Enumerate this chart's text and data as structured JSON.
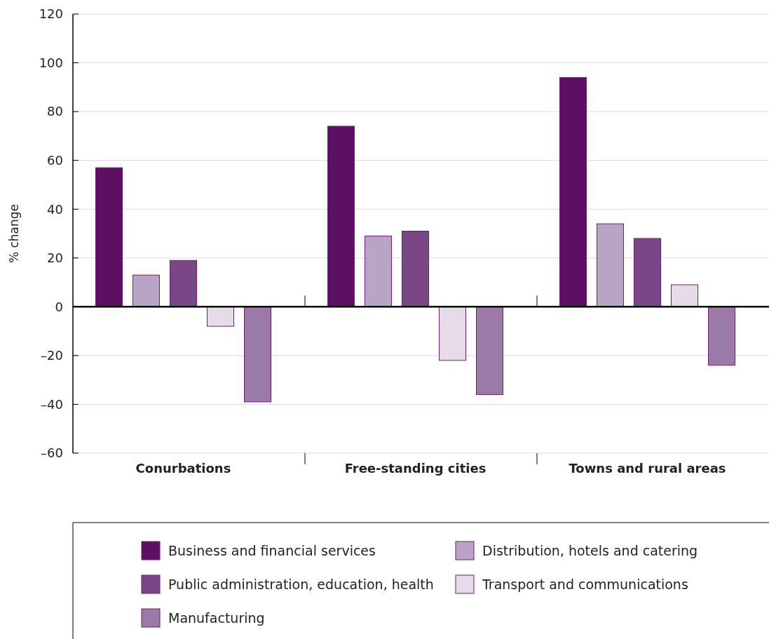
{
  "chart_data": {
    "type": "bar",
    "ylabel": "% change",
    "categories": [
      "Conurbations",
      "Free-standing cities",
      "Towns and rural areas"
    ],
    "series": [
      {
        "name": "Business and financial services",
        "color": "#5c0f63",
        "values": [
          57,
          74,
          94
        ]
      },
      {
        "name": "Distribution, hotels and catering",
        "color": "#b9a3c6",
        "values": [
          13,
          29,
          34
        ]
      },
      {
        "name": "Public administration, education, health",
        "color": "#7a4685",
        "values": [
          19,
          31,
          28
        ]
      },
      {
        "name": "Transport and communications",
        "color": "#e6dbe8",
        "values": [
          -8,
          -22,
          9
        ]
      },
      {
        "name": "Manufacturing",
        "color": "#9b7aa8",
        "values": [
          -39,
          -36,
          -24
        ]
      }
    ],
    "ylim": [
      -60,
      120
    ],
    "yticks": [
      {
        "value": -60,
        "label": "–60"
      },
      {
        "value": -40,
        "label": "–40"
      },
      {
        "value": -20,
        "label": "–20"
      },
      0,
      20,
      40,
      60,
      80,
      100,
      120
    ],
    "grid": "y",
    "legend": "bottom"
  }
}
